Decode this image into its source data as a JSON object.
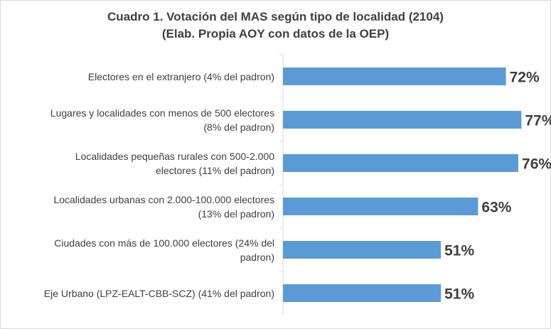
{
  "chart_data": {
    "type": "bar",
    "orientation": "horizontal",
    "title": "Cuadro 1. Votación del MAS según tipo de localidad (2104)",
    "subtitle": "(Elab. Propia AOY con datos de la OEP)",
    "categories": [
      "Electores en el extranjero (4% del padron)",
      "Lugares y localidades con menos de 500 electores (8% del padron)",
      "Localidades pequeñas rurales con 500-2.000 electores (11% del padron)",
      "Localidades urbanas con 2.000-100.000 electores (13% del padron)",
      "Ciudades con más de 100.000 electores (24% del padron)",
      "Eje Urbano (LPZ-EALT-CBB-SCZ) (41% del padron)"
    ],
    "category_lines": [
      [
        "Electores en el extranjero (4% del padron)"
      ],
      [
        "Lugares y localidades con menos de 500 electores",
        "(8% del padron)"
      ],
      [
        "Localidades pequeñas rurales con 500-2.000",
        "electores (11% del padron)"
      ],
      [
        "Localidades urbanas con 2.000-100.000 electores",
        "(13% del padron)"
      ],
      [
        "Ciudades con más de 100.000 electores (24% del",
        "padron)"
      ],
      [
        "Eje Urbano (LPZ-EALT-CBB-SCZ) (41% del padron)"
      ]
    ],
    "values": [
      72,
      77,
      76,
      63,
      51,
      51
    ],
    "data_labels": [
      "72%",
      "77%",
      "76%",
      "63%",
      "51%",
      "51%"
    ],
    "xlim": [
      0,
      90
    ],
    "grid": false,
    "legend": "none",
    "bar_color": "#5b9bd5"
  }
}
